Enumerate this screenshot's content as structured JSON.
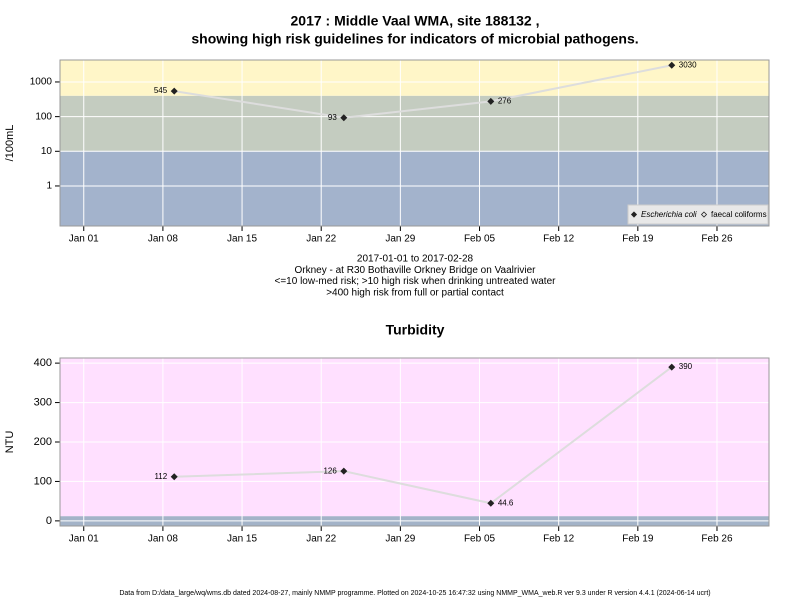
{
  "chart_data": [
    {
      "type": "line",
      "title": "2017 : Middle Vaal WMA, site 188132 ,",
      "subtitle": "showing high risk guidelines for indicators of microbial pathogens.",
      "ylabel": "/100mL",
      "ylog": true,
      "ylim": [
        0.07,
        4300
      ],
      "yticks": [
        1,
        10,
        100,
        1000
      ],
      "xlim": [
        -2.1,
        60.6
      ],
      "xticks": [
        {
          "value": 0,
          "label": "Jan 01"
        },
        {
          "value": 7,
          "label": "Jan 08"
        },
        {
          "value": 14,
          "label": "Jan 15"
        },
        {
          "value": 21,
          "label": "Jan 22"
        },
        {
          "value": 28,
          "label": "Jan 29"
        },
        {
          "value": 35,
          "label": "Feb 05"
        },
        {
          "value": 42,
          "label": "Feb 12"
        },
        {
          "value": 49,
          "label": "Feb 19"
        },
        {
          "value": 56,
          "label": "Feb 26"
        }
      ],
      "x": [
        8,
        23,
        36,
        52
      ],
      "series": [
        {
          "name": "Escherichia coli",
          "color": "#222222",
          "line_color": "#dddddd",
          "values": [
            545,
            93,
            276,
            3030
          ]
        },
        {
          "name": "faecal coliforms",
          "color": "#222222",
          "line_color": "#dddddd",
          "values": [
            null,
            null,
            null,
            null
          ]
        }
      ],
      "bands": [
        {
          "from": 0.07,
          "to": 10,
          "color": "#a3b3cc"
        },
        {
          "from": 10,
          "to": 400,
          "color": "#c4ccc0"
        },
        {
          "from": 400,
          "to": 4300,
          "color": "#fff6c8"
        }
      ],
      "grid": true,
      "legend": "bottom-right",
      "notes": [
        "2017-01-01 to 2017-02-28",
        "Orkney - at R30 Bothaville Orkney Bridge on Vaalrivier",
        "<=10 low-med risk; >10 high risk when drinking untreated water",
        ">400 high risk from full or partial contact"
      ]
    },
    {
      "type": "line",
      "title": "Turbidity",
      "ylabel": "NTU",
      "ylog": false,
      "ylim": [
        -13,
        413
      ],
      "yticks": [
        0,
        100,
        200,
        300,
        400
      ],
      "xlim": [
        -2.1,
        60.6
      ],
      "xticks": [
        {
          "value": 0,
          "label": "Jan 01"
        },
        {
          "value": 7,
          "label": "Jan 08"
        },
        {
          "value": 14,
          "label": "Jan 15"
        },
        {
          "value": 21,
          "label": "Jan 22"
        },
        {
          "value": 28,
          "label": "Jan 29"
        },
        {
          "value": 35,
          "label": "Feb 05"
        },
        {
          "value": 42,
          "label": "Feb 12"
        },
        {
          "value": 49,
          "label": "Feb 19"
        },
        {
          "value": 56,
          "label": "Feb 26"
        }
      ],
      "x": [
        8,
        23,
        36,
        52
      ],
      "series": [
        {
          "name": null,
          "color": "#222222",
          "line_color": "#dddddd",
          "values": [
            112,
            126,
            44.6,
            390
          ]
        }
      ],
      "bands": [
        {
          "from": -13,
          "to": 12,
          "color": "#a3b3c8"
        },
        {
          "from": 12,
          "to": 413,
          "color": "#ffe0ff"
        }
      ],
      "grid": true
    }
  ],
  "footer": "Data from D:/data_large/wq/wms.db dated 2024-08-27, mainly NMMP programme. Plotted on 2024-10-25 16:47:32 using NMMP_WMA_web.R ver 9.3 under R version 4.4.1 (2024-06-14 ucrt)"
}
